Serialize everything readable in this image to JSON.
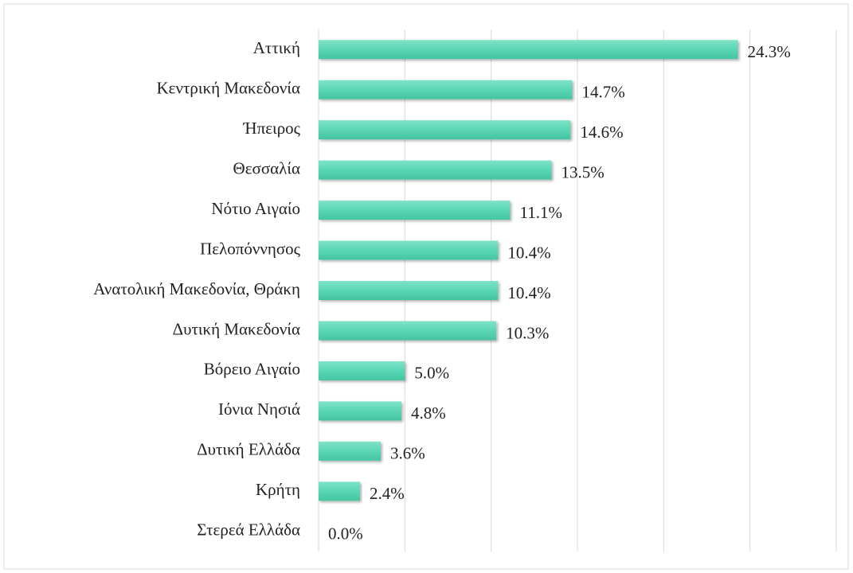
{
  "chart_data": {
    "type": "barh",
    "categories": [
      "Αττική",
      "Κεντρική Μακεδονία",
      "Ήπειρος",
      "Θεσσαλία",
      "Νότιο Αιγαίο",
      "Πελοπόννησος",
      "Ανατολική Μακεδονία, Θράκη",
      "Δυτική Μακεδονία",
      "Βόρειο Αιγαίο",
      "Ιόνια Νησιά",
      "Δυτική Ελλάδα",
      "Κρήτη",
      "Στερεά Ελλάδα"
    ],
    "values": [
      24.3,
      14.7,
      14.6,
      13.5,
      11.1,
      10.4,
      10.4,
      10.3,
      5.0,
      4.8,
      3.6,
      2.4,
      0.0
    ],
    "value_labels": [
      "24.3%",
      "14.7%",
      "14.6%",
      "13.5%",
      "11.1%",
      "10.4%",
      "10.4%",
      "10.3%",
      "5.0%",
      "4.8%",
      "3.6%",
      "2.4%",
      "0.0%"
    ],
    "color": "#5ad6b4",
    "xlim": [
      0,
      30
    ],
    "xticks": [
      0,
      5,
      10,
      15,
      20,
      25,
      30
    ],
    "grid": true
  }
}
